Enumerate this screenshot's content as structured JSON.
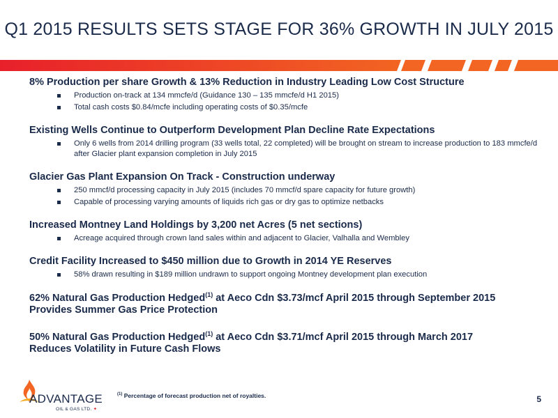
{
  "title": "Q1 2015 RESULTS SETS STAGE FOR 36% GROWTH IN JULY 2015",
  "sections": [
    {
      "heading": "8% Production per share Growth & 13% Reduction in Industry Leading Low Cost Structure",
      "bullets": [
        "Production on-track at 134 mmcfe/d (Guidance 130 – 135 mmcfe/d H1 2015)",
        "Total cash costs $0.84/mcfe including operating costs of $0.35/mcfe"
      ]
    },
    {
      "heading": "Existing Wells Continue to Outperform Development Plan Decline Rate Expectations",
      "bullets": [
        "Only 6 wells from 2014 drilling program (33 wells total, 22 completed) will be brought on stream to increase production to 183 mmcfe/d after Glacier plant expansion completion in July 2015"
      ]
    },
    {
      "heading": "Glacier Gas Plant Expansion On Track  - Construction underway",
      "bullets": [
        "250 mmcf/d processing capacity in July 2015 (includes 70 mmcf/d spare capacity for future growth)",
        "Capable of processing varying amounts of liquids rich gas or dry gas to optimize netbacks"
      ]
    },
    {
      "heading": "Increased Montney Land Holdings by 3,200 net Acres (5 net sections)",
      "bullets": [
        "Acreage acquired through crown land sales within and adjacent to Glacier, Valhalla and Wembley"
      ]
    },
    {
      "heading": "Credit Facility Increased to $450 million due to Growth in 2014 YE Reserves",
      "bullets": [
        "58% drawn resulting in $189 million undrawn to support ongoing Montney development plan execution"
      ]
    }
  ],
  "hedge1": {
    "pre": "62% Natural Gas Production Hedged",
    "sup": "(1)",
    "post": " at Aeco Cdn $3.73/mcf  April 2015 through September 2015",
    "line2": "Provides Summer Gas Price Protection"
  },
  "hedge2": {
    "pre": "50% Natural Gas Production Hedged",
    "sup": "(1)",
    "post": " at Aeco Cdn $3.71/mcf  April 2015 through March 2017",
    "line2": "Reduces Volatility in Future Cash Flows"
  },
  "footnote": {
    "marker": "(1)",
    "text": " Percentage of forecast production net of royalties."
  },
  "page_number": "5",
  "logo": {
    "word": "ADVANTAGE",
    "sub": "OIL & GAS LTD."
  },
  "colors": {
    "text": "#1a2a4a",
    "band_orange": "#f26522",
    "band_red": "#e8202a"
  }
}
